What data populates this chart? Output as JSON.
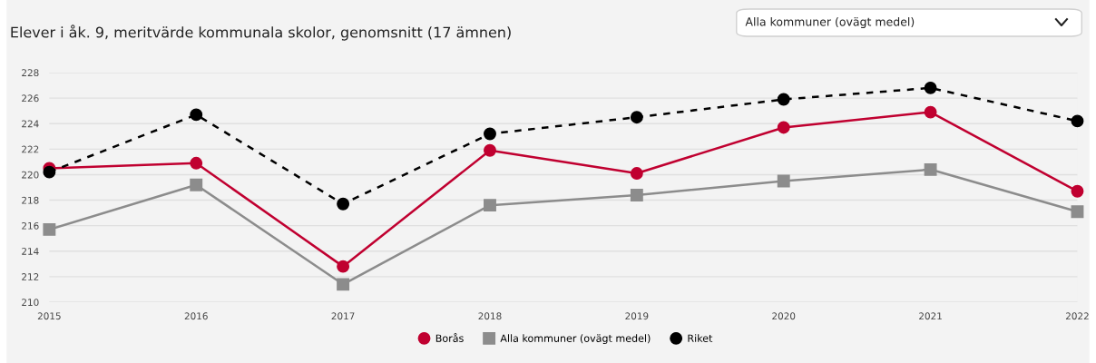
{
  "chart_data": {
    "type": "line",
    "title": "Elever i åk. 9, meritvärde kommunala skolor, genomsnitt (17 ämnen)",
    "annotations": [
      "Alla kommuner (ovägt medel)"
    ],
    "x": [
      2015,
      2016,
      2017,
      2018,
      2019,
      2020,
      2021,
      2022
    ],
    "xlim": [
      2015,
      2022
    ],
    "xticks": [
      2015,
      2016,
      2017,
      2018,
      2019,
      2020,
      2021,
      2022
    ],
    "ylim": [
      210,
      228
    ],
    "yticks": [
      210,
      212,
      214,
      216,
      218,
      220,
      222,
      224,
      226,
      228
    ],
    "grid": "y",
    "legend": "bottom",
    "series": [
      {
        "name": "Borås",
        "color": "#c00030",
        "marker": "circle",
        "line_style": "solid",
        "values": [
          220.5,
          220.9,
          212.8,
          221.9,
          220.1,
          223.7,
          224.9,
          218.7
        ]
      },
      {
        "name": "Alla kommuner (ovägt medel)",
        "color": "#8c8c8c",
        "marker": "square",
        "line_style": "solid",
        "values": [
          215.7,
          219.2,
          211.4,
          217.6,
          218.4,
          219.5,
          220.4,
          217.1
        ]
      },
      {
        "name": "Riket",
        "color": "#000000",
        "marker": "circle",
        "line_style": "dashed",
        "values": [
          220.2,
          224.7,
          217.7,
          223.2,
          224.5,
          225.9,
          226.8,
          224.2
        ]
      }
    ]
  }
}
